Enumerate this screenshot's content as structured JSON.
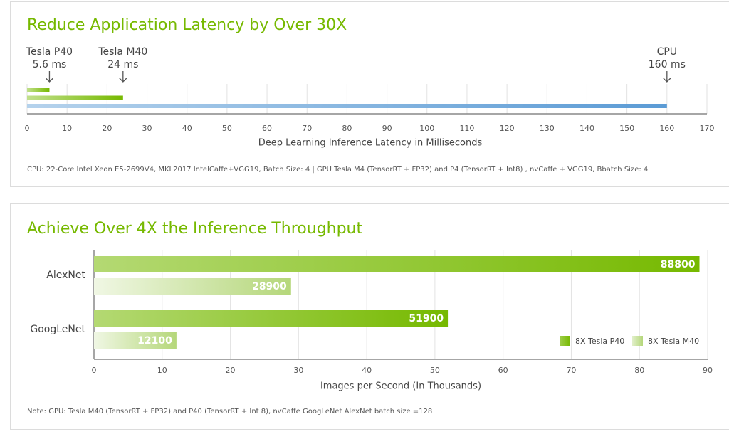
{
  "chart_data": [
    {
      "type": "latency_bar",
      "title": "Reduce Application Latency by Over 30X",
      "categories": [
        "Tesla P40",
        "Tesla M40",
        "CPU"
      ],
      "values": [
        5.6,
        24,
        160
      ],
      "value_labels": [
        "5.6 ms",
        "24 ms",
        "160 ms"
      ],
      "colors": [
        "#76b900",
        "#76b900",
        "#5b9bd5"
      ],
      "xlim": [
        0,
        170
      ],
      "xticks": [
        0,
        10,
        20,
        30,
        40,
        50,
        60,
        70,
        80,
        90,
        100,
        110,
        120,
        130,
        140,
        150,
        160,
        170
      ],
      "xlabel": "Deep Learning Inference Latency in Milliseconds",
      "note": "CPU: 22-Core Intel Xeon E5-2699V4, MKL2017 IntelCaffe+VGG19, Batch Size: 4  |  GPU Tesla M4 (TensorRT + FP32) and P4 (TensorRT + Int8) , nvCaffe + VGG19, Bbatch Size: 4",
      "grid": true
    },
    {
      "type": "grouped_bar",
      "title": "Achieve Over 4X the Inference Throughput",
      "categories": [
        "AlexNet",
        "GoogLeNet"
      ],
      "series": [
        {
          "name": "8X Tesla P40",
          "color": "#76b900",
          "values": [
            88.8,
            51.9
          ],
          "value_labels": [
            "88800",
            "51900"
          ]
        },
        {
          "name": "8X Tesla M40",
          "color": "#b5d77a",
          "values": [
            28.9,
            12.1
          ],
          "value_labels": [
            "28900",
            "12100"
          ]
        }
      ],
      "xlim": [
        0,
        90
      ],
      "xticks": [
        0,
        10,
        20,
        30,
        40,
        50,
        60,
        70,
        80,
        90
      ],
      "xlabel": "Images per Second (In Thousands)",
      "note": "Note: GPU: Tesla  M40 (TensorRT + FP32) and P40 (TensorRT + Int 8), nvCaffe GoogLeNet AlexNet batch size =128",
      "grid": true,
      "legend": "lower right"
    }
  ]
}
